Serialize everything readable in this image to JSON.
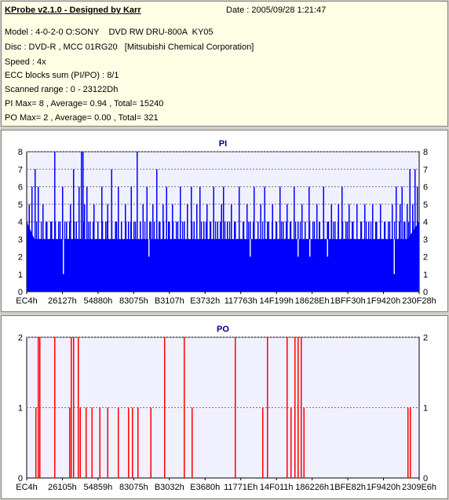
{
  "header": {
    "title": "KProbe v2.1.0 - Designed by Karr",
    "date": "Date : 2005/09/28 1:21:47",
    "lines": [
      "Model : 4-0-2-0 O:SONY    DVD RW DRU-800A  KY05",
      "Disc : DVD-R , MCC 01RG20   [Mitsubishi Chemical Corporation]",
      "Speed : 4x",
      "ECC blocks sum (PI/PO) : 8/1",
      "Scanned range : 0 - 23122Dh",
      "PI Max= 8 , Average= 0.94 , Total= 15240",
      "PO Max= 2 , Average= 0.00 , Total= 321"
    ]
  },
  "colors": {
    "plot_bg": "#f0f0ff",
    "pi_bar": "#0000ff",
    "po_bar": "#ff0000",
    "title_text": "#000080",
    "grid": "#7a7a7a",
    "info_bg": "#ffffe6"
  },
  "chart_data": [
    {
      "type": "bar",
      "title": "PI",
      "ylim": [
        0,
        8
      ],
      "yticks": [
        0,
        1,
        2,
        3,
        4,
        5,
        6,
        7,
        8
      ],
      "xticks": [
        "EC4h",
        "26127h",
        "54880h",
        "83075h",
        "B3107h",
        "E3732h",
        "117763h",
        "14F199h",
        "18628Eh",
        "1BFF30h",
        "1F9420h",
        "230F28h"
      ],
      "grid": true,
      "x_range": [
        0,
        1
      ],
      "baseline_band": {
        "description_free": true,
        "x_start": 0.0,
        "x_end": 1.0,
        "profile": [
          [
            0.0,
            4
          ],
          [
            0.02,
            3
          ],
          [
            0.5,
            3
          ],
          [
            0.92,
            3
          ],
          [
            0.97,
            3
          ],
          [
            1.0,
            4
          ]
        ]
      },
      "spikes": [
        [
          0.005,
          5
        ],
        [
          0.012,
          6
        ],
        [
          0.02,
          7
        ],
        [
          0.028,
          6
        ],
        [
          0.04,
          5
        ],
        [
          0.05,
          4
        ],
        [
          0.062,
          4
        ],
        [
          0.07,
          8
        ],
        [
          0.08,
          4
        ],
        [
          0.09,
          6
        ],
        [
          0.1,
          4
        ],
        [
          0.11,
          5
        ],
        [
          0.118,
          7
        ],
        [
          0.125,
          4
        ],
        [
          0.132,
          6
        ],
        [
          0.138,
          8
        ],
        [
          0.142,
          8
        ],
        [
          0.146,
          5
        ],
        [
          0.152,
          6
        ],
        [
          0.16,
          4
        ],
        [
          0.17,
          5
        ],
        [
          0.18,
          4
        ],
        [
          0.19,
          6
        ],
        [
          0.2,
          4
        ],
        [
          0.205,
          5
        ],
        [
          0.215,
          7
        ],
        [
          0.225,
          4
        ],
        [
          0.232,
          6
        ],
        [
          0.24,
          4
        ],
        [
          0.25,
          5
        ],
        [
          0.258,
          4
        ],
        [
          0.265,
          6
        ],
        [
          0.272,
          4
        ],
        [
          0.28,
          8
        ],
        [
          0.288,
          4
        ],
        [
          0.295,
          5
        ],
        [
          0.305,
          6
        ],
        [
          0.315,
          4
        ],
        [
          0.32,
          5
        ],
        [
          0.33,
          7
        ],
        [
          0.338,
          4
        ],
        [
          0.346,
          5
        ],
        [
          0.355,
          6
        ],
        [
          0.362,
          4
        ],
        [
          0.37,
          5
        ],
        [
          0.38,
          4
        ],
        [
          0.39,
          6
        ],
        [
          0.4,
          4
        ],
        [
          0.408,
          5
        ],
        [
          0.418,
          6
        ],
        [
          0.425,
          4
        ],
        [
          0.432,
          5
        ],
        [
          0.44,
          6
        ],
        [
          0.45,
          4
        ],
        [
          0.458,
          5
        ],
        [
          0.466,
          4
        ],
        [
          0.475,
          6
        ],
        [
          0.485,
          4
        ],
        [
          0.495,
          5
        ],
        [
          0.5,
          6
        ],
        [
          0.51,
          4
        ],
        [
          0.52,
          5
        ],
        [
          0.53,
          4
        ],
        [
          0.54,
          6
        ],
        [
          0.55,
          4
        ],
        [
          0.56,
          5
        ],
        [
          0.568,
          4
        ],
        [
          0.578,
          6
        ],
        [
          0.588,
          4
        ],
        [
          0.595,
          5
        ],
        [
          0.605,
          6
        ],
        [
          0.615,
          4
        ],
        [
          0.625,
          5
        ],
        [
          0.634,
          4
        ],
        [
          0.644,
          6
        ],
        [
          0.652,
          4
        ],
        [
          0.662,
          5
        ],
        [
          0.67,
          4
        ],
        [
          0.68,
          6
        ],
        [
          0.69,
          4
        ],
        [
          0.7,
          5
        ],
        [
          0.708,
          4
        ],
        [
          0.718,
          6
        ],
        [
          0.728,
          4
        ],
        [
          0.738,
          5
        ],
        [
          0.745,
          4
        ],
        [
          0.755,
          6
        ],
        [
          0.765,
          4
        ],
        [
          0.775,
          5
        ],
        [
          0.784,
          4
        ],
        [
          0.793,
          5
        ],
        [
          0.802,
          6
        ],
        [
          0.812,
          4
        ],
        [
          0.82,
          5
        ],
        [
          0.83,
          4
        ],
        [
          0.84,
          5
        ],
        [
          0.85,
          4
        ],
        [
          0.86,
          5
        ],
        [
          0.87,
          4
        ],
        [
          0.88,
          5
        ],
        [
          0.89,
          4
        ],
        [
          0.9,
          5
        ],
        [
          0.91,
          4
        ],
        [
          0.92,
          4
        ],
        [
          0.93,
          5
        ],
        [
          0.94,
          6
        ],
        [
          0.95,
          5
        ],
        [
          0.955,
          6
        ],
        [
          0.962,
          4
        ],
        [
          0.968,
          5
        ],
        [
          0.975,
          7
        ],
        [
          0.982,
          5
        ],
        [
          0.988,
          7
        ],
        [
          0.994,
          6
        ]
      ],
      "dips": [
        [
          0.092,
          1
        ],
        [
          0.31,
          2
        ],
        [
          0.568,
          2
        ],
        [
          0.69,
          2
        ],
        [
          0.72,
          2
        ],
        [
          0.765,
          2
        ],
        [
          0.935,
          1
        ]
      ]
    },
    {
      "type": "bar",
      "title": "PO",
      "ylim": [
        0,
        2
      ],
      "yticks": [
        0,
        1,
        2
      ],
      "xticks": [
        "EC4h",
        "26105h",
        "54859h",
        "83075h",
        "B3032h",
        "E3680h",
        "11771Eh",
        "14F011h",
        "186226h",
        "1BFE82h",
        "1F9420h",
        "2309E6h"
      ],
      "grid": true,
      "bars": [
        [
          0.022,
          1
        ],
        [
          0.028,
          2
        ],
        [
          0.032,
          2
        ],
        [
          0.07,
          2
        ],
        [
          0.108,
          1
        ],
        [
          0.112,
          2
        ],
        [
          0.118,
          2
        ],
        [
          0.13,
          2
        ],
        [
          0.135,
          1
        ],
        [
          0.15,
          1
        ],
        [
          0.165,
          1
        ],
        [
          0.185,
          1
        ],
        [
          0.205,
          1
        ],
        [
          0.232,
          1
        ],
        [
          0.258,
          1
        ],
        [
          0.268,
          1
        ],
        [
          0.282,
          1
        ],
        [
          0.315,
          1
        ],
        [
          0.35,
          2
        ],
        [
          0.35,
          2
        ],
        [
          0.4,
          2
        ],
        [
          0.42,
          1
        ],
        [
          0.53,
          2
        ],
        [
          0.6,
          1
        ],
        [
          0.612,
          2
        ],
        [
          0.662,
          2
        ],
        [
          0.672,
          1
        ],
        [
          0.682,
          2
        ],
        [
          0.69,
          2
        ],
        [
          0.698,
          2
        ],
        [
          0.705,
          1
        ],
        [
          0.97,
          1
        ],
        [
          0.976,
          1
        ]
      ]
    }
  ]
}
